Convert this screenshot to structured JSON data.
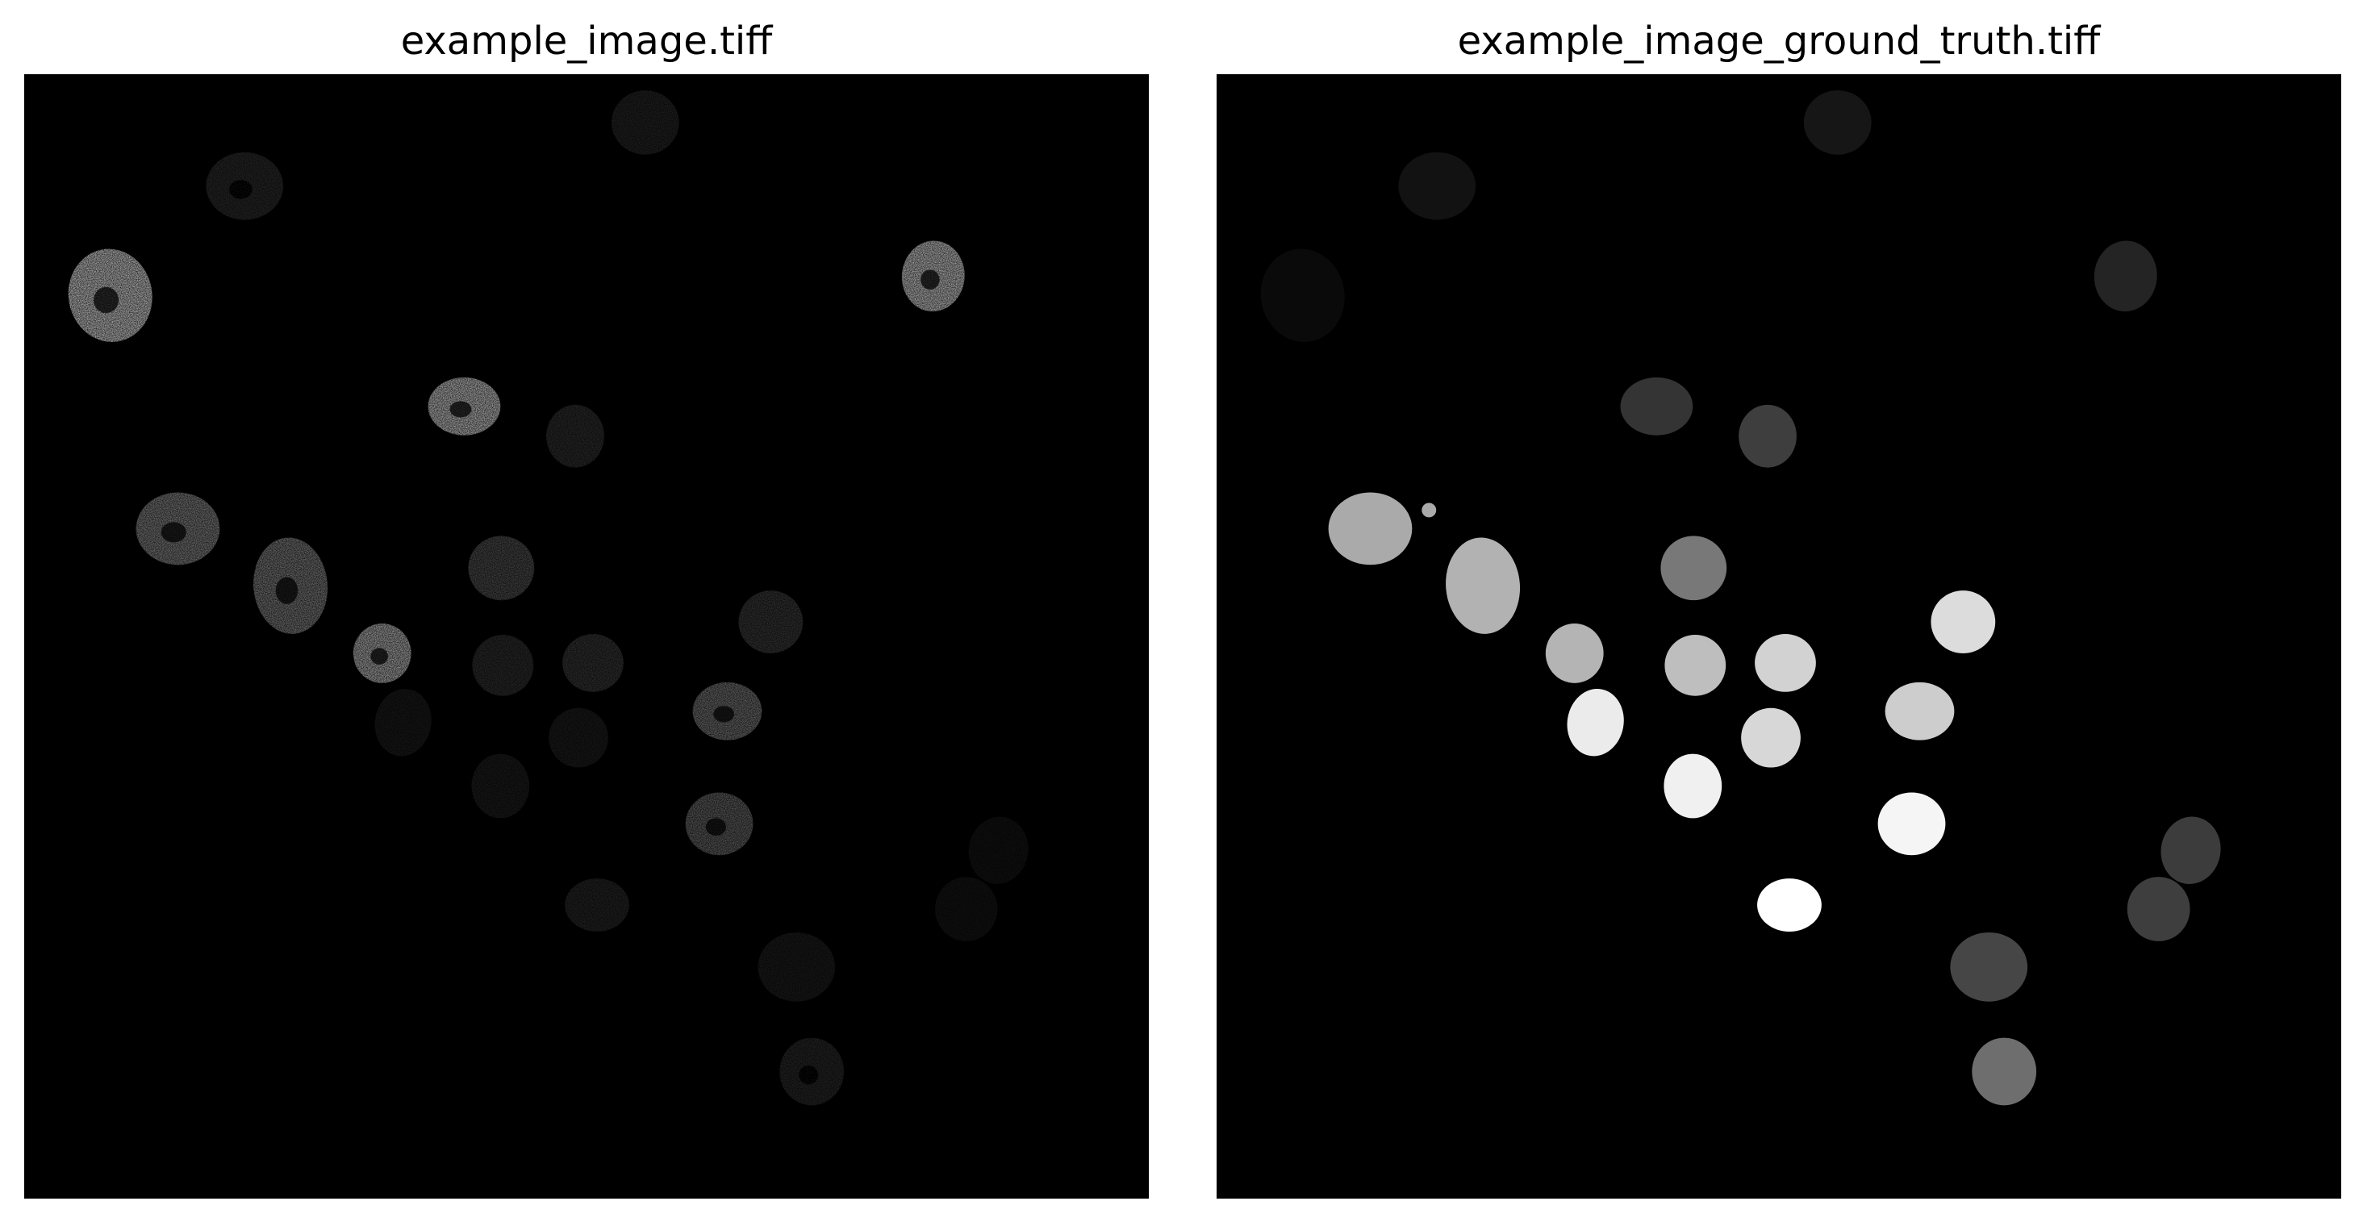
{
  "panels": [
    {
      "title": "example_image.tiff"
    },
    {
      "title": "example_image_ground_truth.tiff"
    }
  ]
}
